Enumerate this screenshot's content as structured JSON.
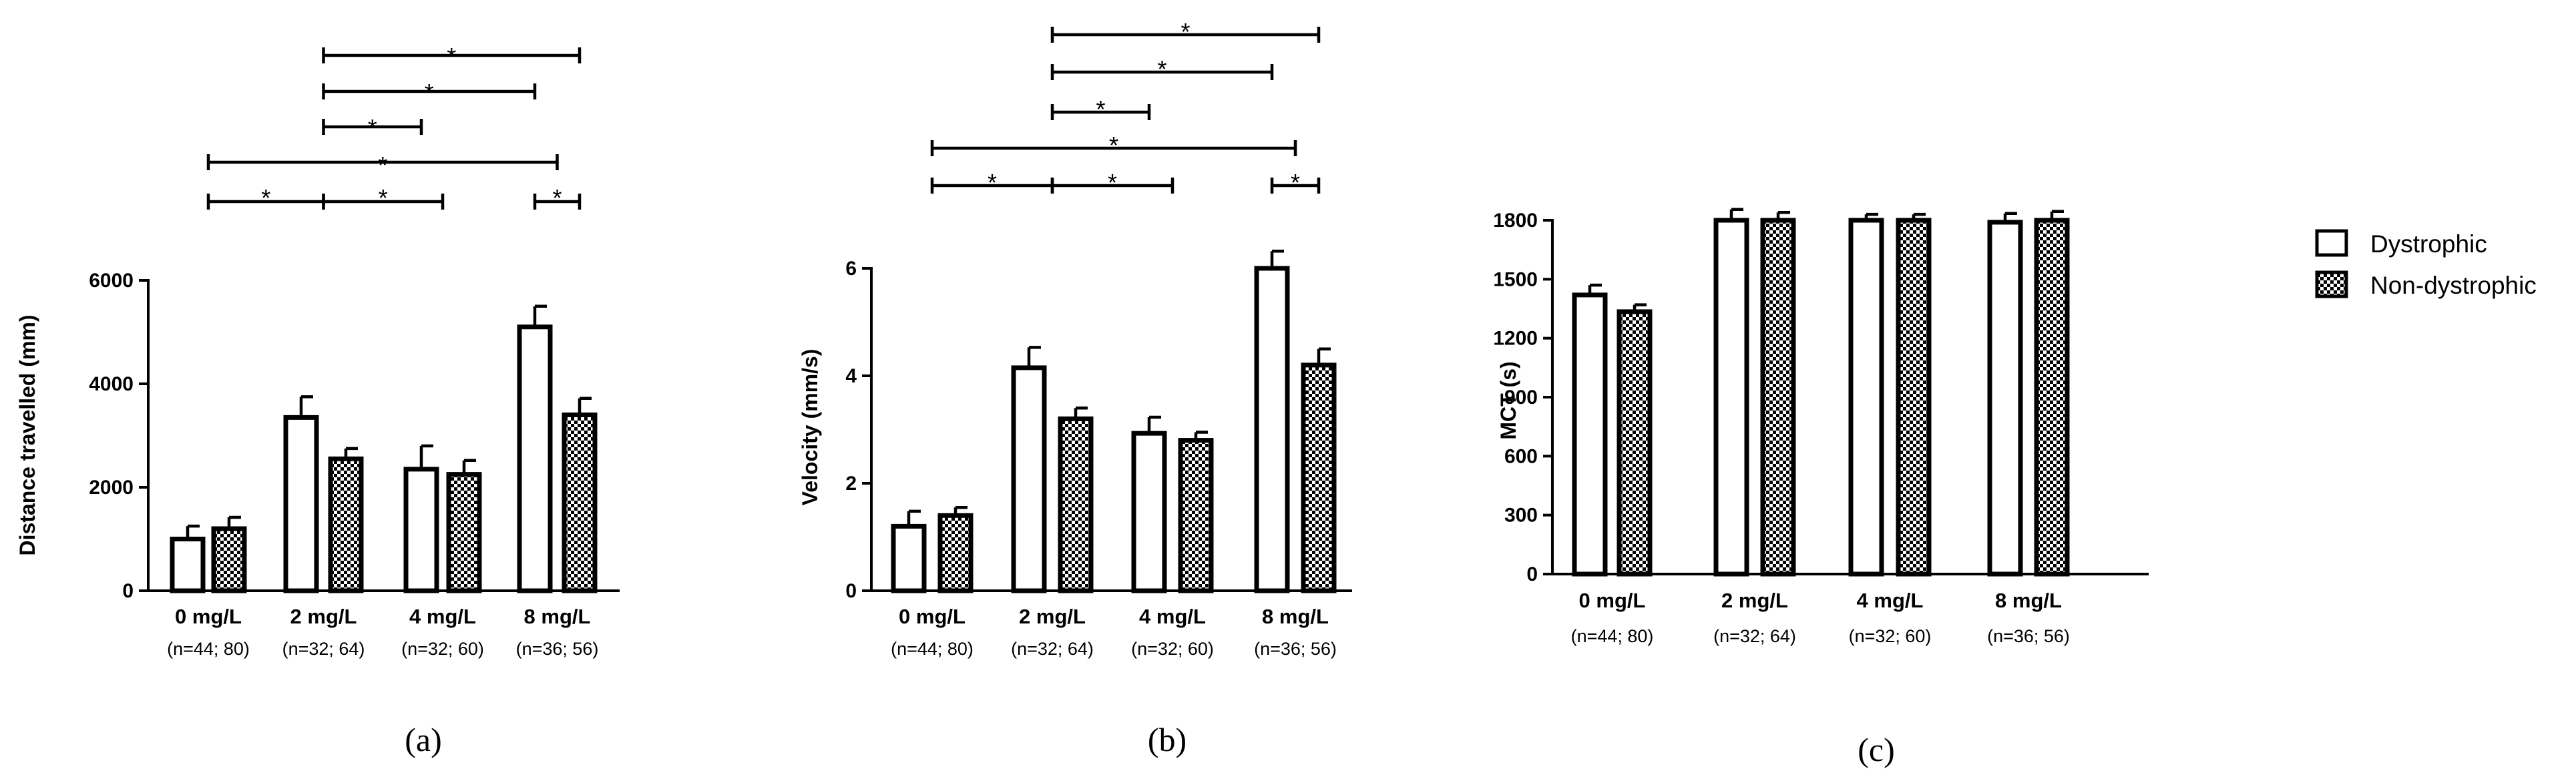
{
  "chart_data": [
    {
      "type": "bar",
      "panel_label": "(a)",
      "ylabel": "Distance travelled (mm)",
      "ylim": [
        0,
        6000
      ],
      "yticks": [
        "0",
        "2000",
        "4000",
        "6000"
      ],
      "categories": [
        "0 mg/L",
        "2 mg/L",
        "4 mg/L",
        "8 mg/L"
      ],
      "sample_sizes": [
        "(n=44; 80)",
        "(n=32; 64)",
        "(n=32; 60)",
        "(n=36; 56)"
      ],
      "series": [
        {
          "name": "Dystrophic",
          "values": [
            1000,
            3350,
            2350,
            5100
          ],
          "errors": [
            250,
            400,
            450,
            400
          ]
        },
        {
          "name": "Non-dystrophic",
          "values": [
            1200,
            2550,
            2250,
            3400
          ],
          "errors": [
            220,
            200,
            270,
            320
          ]
        }
      ],
      "significance": [
        {
          "from": "0 mg/L",
          "to": "2 mg/L",
          "label": "*"
        },
        {
          "from": "2 mg/L",
          "to": "4 mg/L",
          "label": "*"
        },
        {
          "from": "8 mg/L Dystrophic",
          "to": "8 mg/L Non-dystrophic",
          "label": "*"
        },
        {
          "from": "0 mg/L",
          "to": "8 mg/L",
          "label": "*"
        },
        {
          "from": "2 mg/L",
          "to": "4 mg/L Dystrophic",
          "label": "*"
        },
        {
          "from": "2 mg/L",
          "to": "8 mg/L Dystrophic",
          "label": "*"
        },
        {
          "from": "2 mg/L",
          "to": "8 mg/L Non-dystrophic",
          "label": "*"
        }
      ]
    },
    {
      "type": "bar",
      "panel_label": "(b)",
      "ylabel": "Velocity (mm/s)",
      "ylim": [
        0,
        6
      ],
      "yticks": [
        "0",
        "2",
        "4",
        "6"
      ],
      "categories": [
        "0 mg/L",
        "2 mg/L",
        "4 mg/L",
        "8 mg/L"
      ],
      "sample_sizes": [
        "(n=44; 80)",
        "(n=32; 64)",
        "(n=32; 60)",
        "(n=36; 56)"
      ],
      "series": [
        {
          "name": "Dystrophic",
          "values": [
            1.2,
            4.15,
            2.93,
            6.0
          ],
          "errors": [
            0.28,
            0.38,
            0.3,
            0.32
          ]
        },
        {
          "name": "Non-dystrophic",
          "values": [
            1.4,
            3.2,
            2.8,
            4.2
          ],
          "errors": [
            0.15,
            0.2,
            0.15,
            0.3
          ]
        }
      ],
      "significance": [
        {
          "from": "0 mg/L",
          "to": "2 mg/L",
          "label": "*"
        },
        {
          "from": "2 mg/L",
          "to": "4 mg/L",
          "label": "*"
        },
        {
          "from": "8 mg/L Dystrophic",
          "to": "8 mg/L Non-dystrophic",
          "label": "*"
        },
        {
          "from": "0 mg/L",
          "to": "8 mg/L",
          "label": "*"
        },
        {
          "from": "2 mg/L",
          "to": "4 mg/L Dystrophic",
          "label": "*"
        },
        {
          "from": "2 mg/L",
          "to": "8 mg/L Dystrophic",
          "label": "*"
        },
        {
          "from": "2 mg/L",
          "to": "8 mg/L Non-dystrophic",
          "label": "*"
        }
      ]
    },
    {
      "type": "bar",
      "panel_label": "(c)",
      "ylabel": "MCT (s)",
      "ylim": [
        0,
        1800
      ],
      "yticks": [
        "0",
        "300",
        "600",
        "900",
        "1200",
        "1500",
        "1800"
      ],
      "categories": [
        "0 mg/L",
        "2 mg/L",
        "4 mg/L",
        "8 mg/L"
      ],
      "sample_sizes": [
        "(n=44; 80)",
        "(n=32; 64)",
        "(n=32; 60)",
        "(n=36; 56)"
      ],
      "series": [
        {
          "name": "Dystrophic",
          "values": [
            1420,
            1800,
            1800,
            1790
          ],
          "errors": [
            50,
            55,
            30,
            45
          ]
        },
        {
          "name": "Non-dystrophic",
          "values": [
            1335,
            1800,
            1800,
            1800
          ],
          "errors": [
            35,
            40,
            30,
            45
          ]
        }
      ],
      "significance": []
    }
  ],
  "legend": {
    "items": [
      {
        "label": "Dystrophic",
        "pattern": "open"
      },
      {
        "label": "Non-dystrophic",
        "pattern": "checkered"
      }
    ]
  },
  "colors": {
    "outline": "#000000",
    "dystrophic_fill": "#ffffff",
    "checker_dark": "#000000",
    "checker_light": "#ffffff"
  }
}
